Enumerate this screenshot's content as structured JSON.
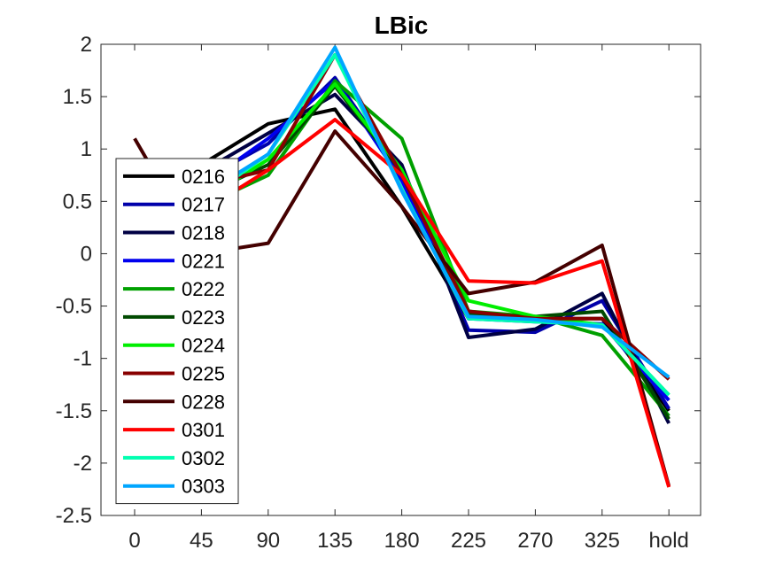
{
  "chart_data": {
    "type": "line",
    "title": "LBic",
    "xlabel": "",
    "ylabel": "",
    "categories": [
      "0",
      "45",
      "90",
      "135",
      "180",
      "225",
      "270",
      "325",
      "hold"
    ],
    "ylim": [
      -2.5,
      2
    ],
    "yticks": [
      "2",
      "1.5",
      "1",
      "0.5",
      "0",
      "-0.5",
      "-1",
      "-1.5",
      "-2",
      "-2.5"
    ],
    "ytick_values": [
      2,
      1.5,
      1,
      0.5,
      0,
      -0.5,
      -1,
      -1.5,
      -2,
      -2.5
    ],
    "grid": false,
    "legend_position": "left",
    "series": [
      {
        "name": "0216",
        "color": "#000000",
        "values": [
          0.55,
          0.85,
          1.24,
          1.38,
          0.45,
          -0.62,
          -0.62,
          -0.62,
          -1.5
        ]
      },
      {
        "name": "0217",
        "color": "#0000aa",
        "values": [
          0.6,
          0.7,
          1.05,
          1.68,
          0.75,
          -0.73,
          -0.75,
          -0.45,
          -1.48
        ]
      },
      {
        "name": "0218",
        "color": "#000044",
        "values": [
          0.65,
          0.78,
          1.15,
          1.52,
          0.85,
          -0.8,
          -0.72,
          -0.38,
          -1.62
        ]
      },
      {
        "name": "0221",
        "color": "#0000ee",
        "values": [
          0.5,
          0.65,
          1.1,
          1.65,
          0.7,
          -0.62,
          -0.65,
          -0.67,
          -1.4
        ]
      },
      {
        "name": "0222",
        "color": "#00a000",
        "values": [
          0.35,
          0.45,
          0.75,
          1.65,
          1.1,
          -0.55,
          -0.6,
          -0.78,
          -1.55
        ]
      },
      {
        "name": "0223",
        "color": "#004a00",
        "values": [
          0.4,
          0.55,
          0.85,
          1.6,
          0.78,
          -0.58,
          -0.6,
          -0.55,
          -1.58
        ]
      },
      {
        "name": "0224",
        "color": "#00ee00",
        "values": [
          0.35,
          0.5,
          0.9,
          1.62,
          0.8,
          -0.45,
          -0.6,
          -0.68,
          -1.35
        ]
      },
      {
        "name": "0225",
        "color": "#880000",
        "values": [
          0.6,
          0.65,
          0.8,
          1.9,
          0.75,
          -0.55,
          -0.62,
          -0.62,
          -1.2
        ]
      },
      {
        "name": "0228",
        "color": "#440000",
        "values": [
          1.1,
          0.0,
          0.1,
          1.17,
          0.45,
          -0.38,
          -0.27,
          0.08,
          -2.22
        ]
      },
      {
        "name": "0301",
        "color": "#ff0000",
        "values": [
          0.3,
          0.4,
          0.8,
          1.28,
          0.75,
          -0.26,
          -0.28,
          -0.07,
          -2.23
        ]
      },
      {
        "name": "0302",
        "color": "#00ffb0",
        "values": [
          0.35,
          0.5,
          0.95,
          1.9,
          0.62,
          -0.62,
          -0.65,
          -0.68,
          -1.35
        ]
      },
      {
        "name": "0303",
        "color": "#00a6ff",
        "values": [
          0.4,
          0.55,
          0.95,
          1.97,
          0.6,
          -0.6,
          -0.63,
          -0.7,
          -1.18
        ]
      }
    ]
  }
}
